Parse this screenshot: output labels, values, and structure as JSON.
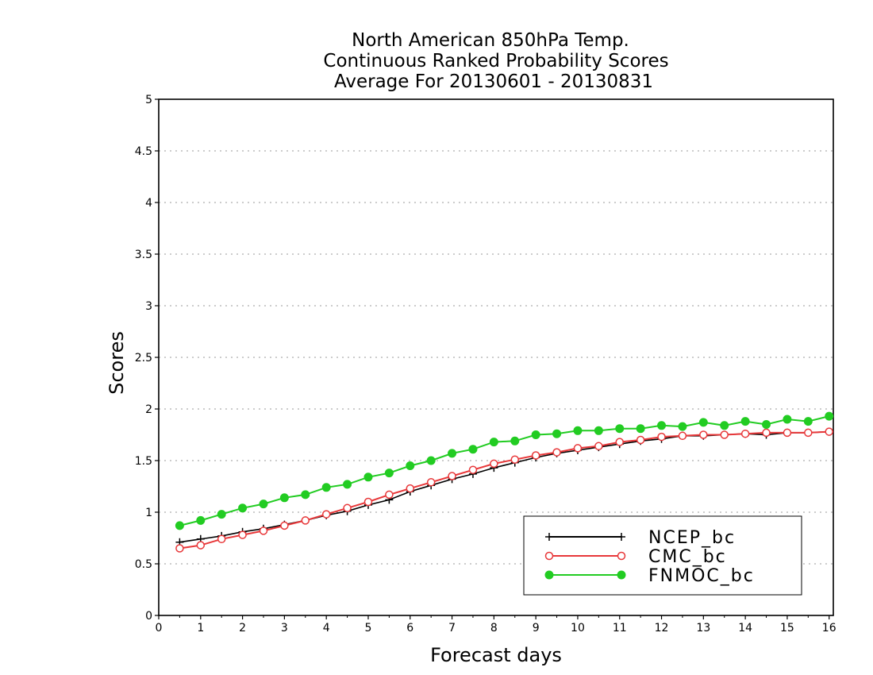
{
  "chart_data": {
    "type": "line",
    "title": [
      "North American 850hPa Temp.",
      "Continuous Ranked Probability Scores",
      "Average For 20130601 - 20130831"
    ],
    "xlabel": "Forecast days",
    "ylabel": "Scores",
    "xlim": [
      0,
      16.1
    ],
    "ylim": [
      0,
      5
    ],
    "xticks": [
      0,
      1,
      2,
      3,
      4,
      5,
      6,
      7,
      8,
      9,
      10,
      11,
      12,
      13,
      14,
      15,
      16
    ],
    "yticks": [
      0,
      0.5,
      1,
      1.5,
      2,
      2.5,
      3,
      3.5,
      4,
      4.5,
      5
    ],
    "ytick_labels": [
      "0",
      "0.5",
      "1",
      "1.5",
      "2",
      "2.5",
      "3",
      "3.5",
      "4",
      "4.5",
      "5"
    ],
    "grid": "horizontal dotted",
    "legend_position": "bottom-right",
    "x": [
      0.5,
      1,
      1.5,
      2,
      2.5,
      3,
      3.5,
      4,
      4.5,
      5,
      5.5,
      6,
      6.5,
      7,
      7.5,
      8,
      8.5,
      9,
      9.5,
      10,
      10.5,
      11,
      11.5,
      12,
      12.5,
      13,
      13.5,
      14,
      14.5,
      15,
      15.5,
      16
    ],
    "series": [
      {
        "name": "NCEP_bc",
        "color": "#000000",
        "marker": "plus",
        "values": [
          0.71,
          0.74,
          0.77,
          0.81,
          0.84,
          0.88,
          0.92,
          0.97,
          1.01,
          1.07,
          1.12,
          1.2,
          1.26,
          1.32,
          1.37,
          1.43,
          1.48,
          1.53,
          1.57,
          1.6,
          1.63,
          1.66,
          1.69,
          1.71,
          1.74,
          1.74,
          1.75,
          1.76,
          1.75,
          1.77,
          1.77,
          1.78
        ]
      },
      {
        "name": "CMC_bc",
        "color": "#e8383a",
        "marker": "open-circle",
        "values": [
          0.65,
          0.68,
          0.74,
          0.78,
          0.82,
          0.87,
          0.92,
          0.98,
          1.04,
          1.1,
          1.17,
          1.23,
          1.29,
          1.35,
          1.41,
          1.47,
          1.51,
          1.55,
          1.58,
          1.62,
          1.64,
          1.68,
          1.7,
          1.73,
          1.74,
          1.75,
          1.75,
          1.76,
          1.77,
          1.77,
          1.77,
          1.78
        ]
      },
      {
        "name": "FNMOC_bc",
        "color": "#22cc22",
        "marker": "filled-circle",
        "values": [
          0.87,
          0.92,
          0.98,
          1.04,
          1.08,
          1.14,
          1.17,
          1.24,
          1.27,
          1.34,
          1.38,
          1.45,
          1.5,
          1.57,
          1.61,
          1.68,
          1.69,
          1.75,
          1.76,
          1.79,
          1.79,
          1.81,
          1.81,
          1.84,
          1.83,
          1.87,
          1.84,
          1.88,
          1.85,
          1.9,
          1.88,
          1.93
        ]
      }
    ]
  }
}
